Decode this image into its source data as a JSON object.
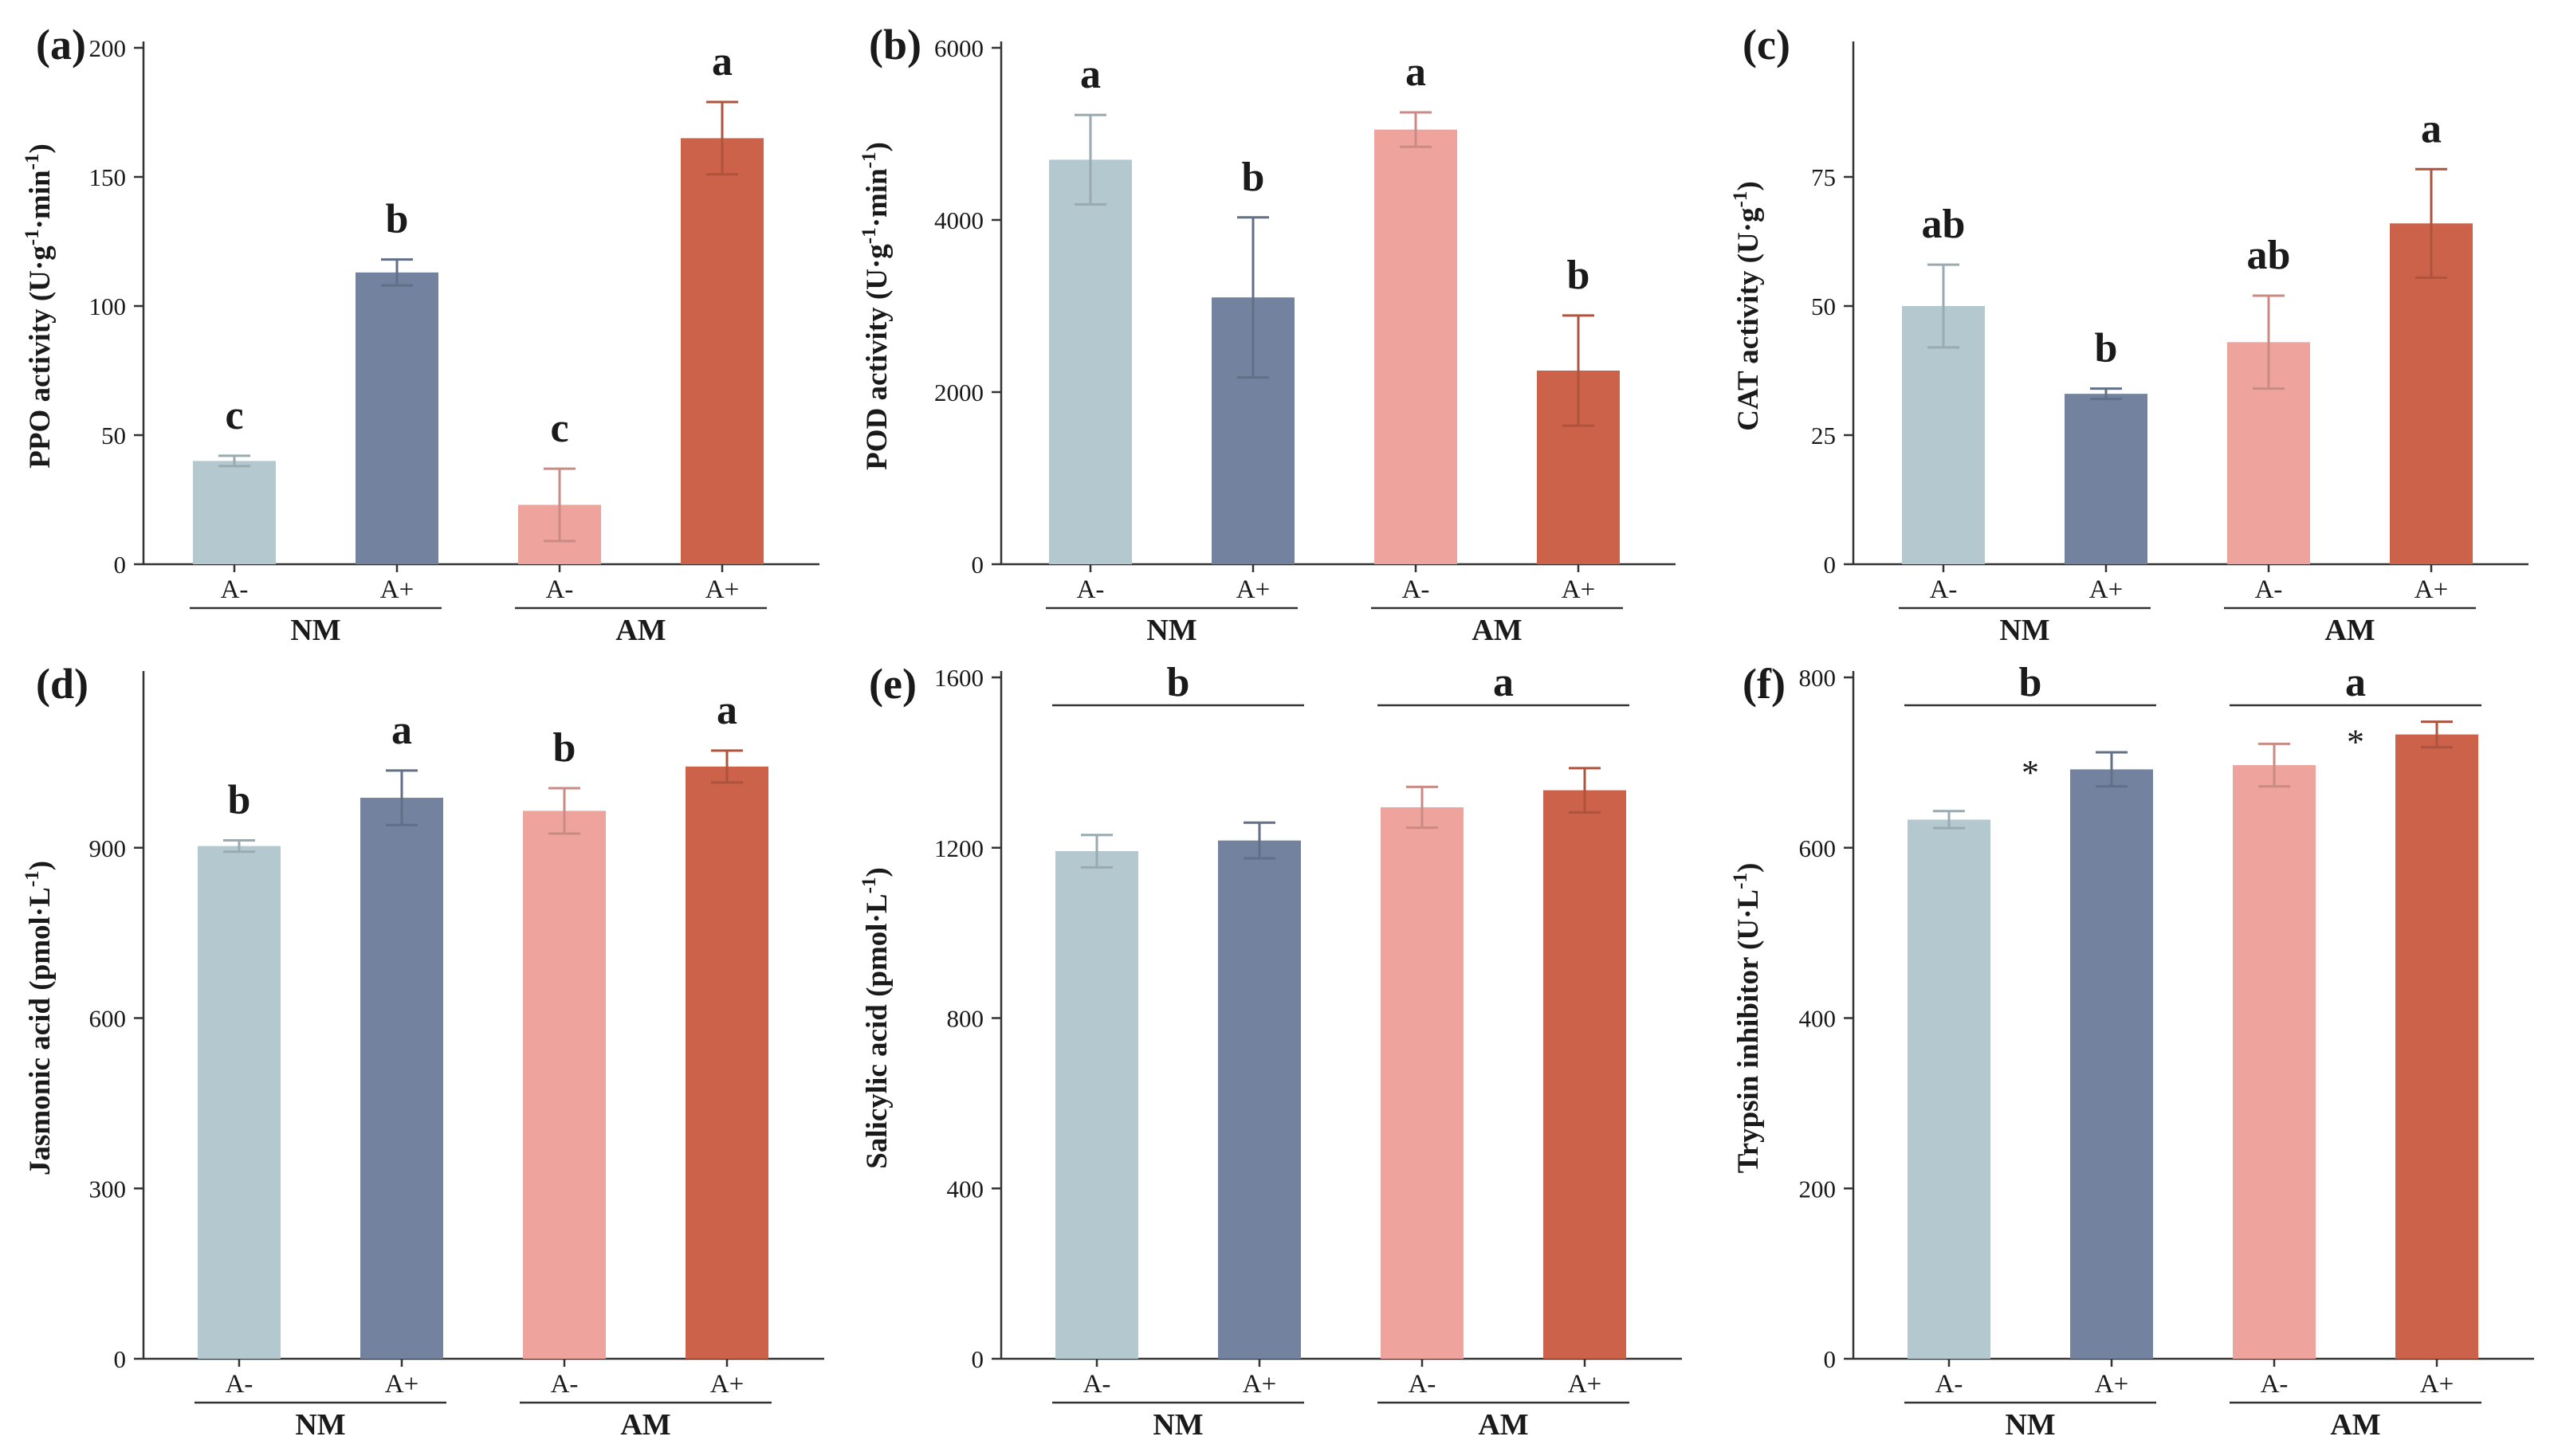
{
  "chart_data": [
    {
      "type": "bar",
      "panel": "(a)",
      "ylabel": "PPO activity (U·g⁻¹·min⁻¹)",
      "ylabel_main": "PPO activity (U·g",
      "ylabel_sup1": "-1",
      "ylabel_mid": "·min",
      "ylabel_sup2": "-1",
      "ylabel_end": ")",
      "ylim": [
        0,
        200
      ],
      "yticks": [
        0,
        50,
        100,
        150,
        200
      ],
      "categories": [
        "A-",
        "A+",
        "A-",
        "A+"
      ],
      "groups": [
        {
          "name": "NM",
          "label": ""
        },
        {
          "name": "AM",
          "label": ""
        }
      ],
      "values": [
        40,
        113,
        23,
        165
      ],
      "errors": [
        2,
        5,
        14,
        14
      ],
      "labels": [
        "c",
        "b",
        "c",
        "a"
      ],
      "stars": [
        "",
        ""
      ]
    },
    {
      "type": "bar",
      "panel": "(b)",
      "ylabel": "POD activity (U·g⁻¹·min⁻¹)",
      "ylabel_main": "POD activity (U·g",
      "ylabel_sup1": "-1",
      "ylabel_mid": "·min",
      "ylabel_sup2": "-1",
      "ylabel_end": ")",
      "ylim": [
        0,
        6000
      ],
      "yticks": [
        0,
        2000,
        4000,
        6000
      ],
      "categories": [
        "A-",
        "A+",
        "A-",
        "A+"
      ],
      "groups": [
        {
          "name": "NM",
          "label": ""
        },
        {
          "name": "AM",
          "label": ""
        }
      ],
      "values": [
        4700,
        3100,
        5050,
        2250
      ],
      "errors": [
        520,
        930,
        200,
        640
      ],
      "labels": [
        "a",
        "b",
        "a",
        "b"
      ],
      "stars": [
        "",
        ""
      ]
    },
    {
      "type": "bar",
      "panel": "(c)",
      "ylabel": "CAT activity (U·g⁻¹)",
      "ylabel_main": "CAT activity (U·g",
      "ylabel_sup1": "-1",
      "ylabel_mid": "",
      "ylabel_sup2": "",
      "ylabel_end": ")",
      "ylim": [
        0,
        100
      ],
      "yticks": [
        0,
        25,
        50,
        75
      ],
      "categories": [
        "A-",
        "A+",
        "A-",
        "A+"
      ],
      "groups": [
        {
          "name": "NM",
          "label": ""
        },
        {
          "name": "AM",
          "label": ""
        }
      ],
      "values": [
        50,
        33,
        43,
        66
      ],
      "errors": [
        8,
        1,
        9,
        10.5
      ],
      "labels": [
        "ab",
        "b",
        "ab",
        "a"
      ],
      "stars": [
        "",
        ""
      ]
    },
    {
      "type": "bar",
      "panel": "(d)",
      "ylabel": "Jasmonic acid (pmol·L⁻¹)",
      "ylabel_main": "Jasmonic acid (pmol·L",
      "ylabel_sup1": "-1",
      "ylabel_mid": "",
      "ylabel_sup2": "",
      "ylabel_end": ")",
      "ylim": [
        0,
        1200
      ],
      "yticks": [
        0,
        300,
        600,
        900
      ],
      "categories": [
        "A-",
        "A+",
        "A-",
        "A+"
      ],
      "groups": [
        {
          "name": "NM",
          "label": ""
        },
        {
          "name": "AM",
          "label": ""
        }
      ],
      "values": [
        903,
        988,
        965,
        1043
      ],
      "errors": [
        10,
        48,
        40,
        28
      ],
      "labels": [
        "b",
        "a",
        "b",
        "a"
      ],
      "stars": [
        "",
        ""
      ]
    },
    {
      "type": "bar",
      "panel": "(e)",
      "ylabel": "Salicylic acid (pmol·L⁻¹)",
      "ylabel_main": "Salicylic acid (pmol·L",
      "ylabel_sup1": "-1",
      "ylabel_mid": "",
      "ylabel_sup2": "",
      "ylabel_end": ")",
      "ylim": [
        0,
        1600
      ],
      "yticks": [
        0,
        400,
        800,
        1200,
        1600
      ],
      "categories": [
        "A-",
        "A+",
        "A-",
        "A+"
      ],
      "groups": [
        {
          "name": "NM",
          "label": "b"
        },
        {
          "name": "AM",
          "label": "a"
        }
      ],
      "values": [
        1192,
        1217,
        1295,
        1335
      ],
      "errors": [
        38,
        42,
        48,
        52
      ],
      "labels": [
        "",
        "",
        "",
        ""
      ],
      "stars": [
        "",
        ""
      ]
    },
    {
      "type": "bar",
      "panel": "(f)",
      "ylabel": "Trypsin inhibitor (U·L⁻¹)",
      "ylabel_main": "Trypsin inhibitor (U·L",
      "ylabel_sup1": "-1",
      "ylabel_mid": "",
      "ylabel_sup2": "",
      "ylabel_end": ")",
      "ylim": [
        0,
        800
      ],
      "yticks": [
        0,
        200,
        400,
        600,
        800
      ],
      "categories": [
        "A-",
        "A+",
        "A-",
        "A+"
      ],
      "groups": [
        {
          "name": "NM",
          "label": "b"
        },
        {
          "name": "AM",
          "label": "a"
        }
      ],
      "values": [
        633,
        692,
        697,
        733
      ],
      "errors": [
        10,
        20,
        25,
        15
      ],
      "labels": [
        "",
        "",
        "",
        ""
      ],
      "stars": [
        "*",
        "*"
      ]
    }
  ],
  "colors": [
    "#b4c8d0",
    "#72829f",
    "#eea49c",
    "#cc6249"
  ]
}
